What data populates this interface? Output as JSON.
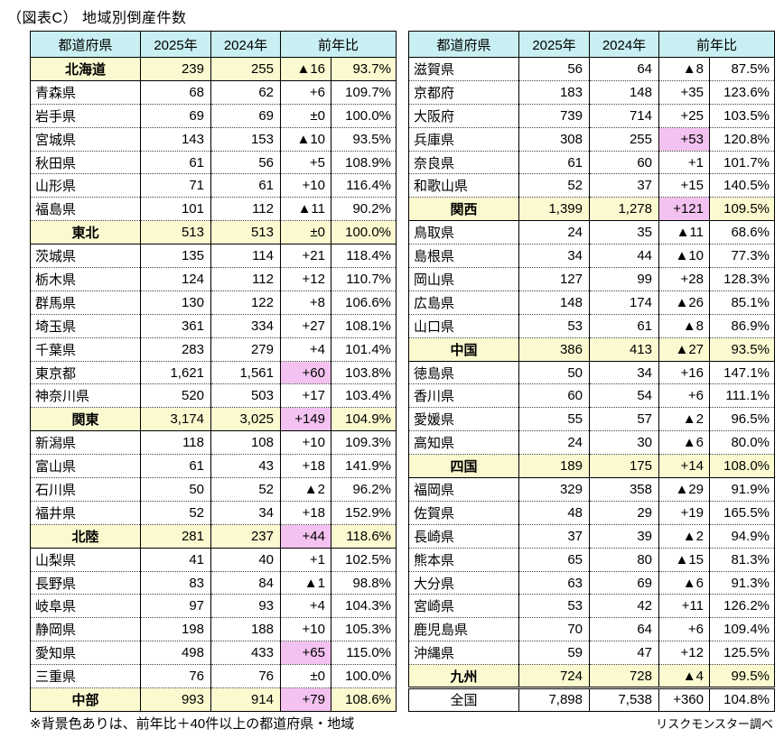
{
  "title": "（図表C） 地域別倒産件数",
  "footnote": "※背景色ありは、前年比＋40件以上の都道府県・地域",
  "credit": "リスクモンスター調べ",
  "columns": [
    "都道府県",
    "2025年",
    "2024年",
    "前年比"
  ],
  "colors": {
    "header_bg": "#C8EFF2",
    "region_bg": "#FBF9CF",
    "highlight_bg": "#F4C2F0"
  },
  "tables": [
    {
      "side": "left",
      "rows": [
        {
          "name": "北海道",
          "type": "region",
          "v2025": "239",
          "v2024": "255",
          "diff": "▲16",
          "ratio": "93.7%",
          "hl": false
        },
        {
          "name": "青森県",
          "type": "pref",
          "v2025": "68",
          "v2024": "62",
          "diff": "+6",
          "ratio": "109.7%",
          "hl": false
        },
        {
          "name": "岩手県",
          "type": "pref",
          "v2025": "69",
          "v2024": "69",
          "diff": "±0",
          "ratio": "100.0%",
          "hl": false
        },
        {
          "name": "宮城県",
          "type": "pref",
          "v2025": "143",
          "v2024": "153",
          "diff": "▲10",
          "ratio": "93.5%",
          "hl": false
        },
        {
          "name": "秋田県",
          "type": "pref",
          "v2025": "61",
          "v2024": "56",
          "diff": "+5",
          "ratio": "108.9%",
          "hl": false
        },
        {
          "name": "山形県",
          "type": "pref",
          "v2025": "71",
          "v2024": "61",
          "diff": "+10",
          "ratio": "116.4%",
          "hl": false
        },
        {
          "name": "福島県",
          "type": "pref",
          "v2025": "101",
          "v2024": "112",
          "diff": "▲11",
          "ratio": "90.2%",
          "hl": false
        },
        {
          "name": "東北",
          "type": "region",
          "v2025": "513",
          "v2024": "513",
          "diff": "±0",
          "ratio": "100.0%",
          "hl": false
        },
        {
          "name": "茨城県",
          "type": "pref",
          "v2025": "135",
          "v2024": "114",
          "diff": "+21",
          "ratio": "118.4%",
          "hl": false
        },
        {
          "name": "栃木県",
          "type": "pref",
          "v2025": "124",
          "v2024": "112",
          "diff": "+12",
          "ratio": "110.7%",
          "hl": false
        },
        {
          "name": "群馬県",
          "type": "pref",
          "v2025": "130",
          "v2024": "122",
          "diff": "+8",
          "ratio": "106.6%",
          "hl": false
        },
        {
          "name": "埼玉県",
          "type": "pref",
          "v2025": "361",
          "v2024": "334",
          "diff": "+27",
          "ratio": "108.1%",
          "hl": false
        },
        {
          "name": "千葉県",
          "type": "pref",
          "v2025": "283",
          "v2024": "279",
          "diff": "+4",
          "ratio": "101.4%",
          "hl": false
        },
        {
          "name": "東京都",
          "type": "pref",
          "v2025": "1,621",
          "v2024": "1,561",
          "diff": "+60",
          "ratio": "103.8%",
          "hl": true
        },
        {
          "name": "神奈川県",
          "type": "pref",
          "v2025": "520",
          "v2024": "503",
          "diff": "+17",
          "ratio": "103.4%",
          "hl": false
        },
        {
          "name": "関東",
          "type": "region",
          "v2025": "3,174",
          "v2024": "3,025",
          "diff": "+149",
          "ratio": "104.9%",
          "hl": true
        },
        {
          "name": "新潟県",
          "type": "pref",
          "v2025": "118",
          "v2024": "108",
          "diff": "+10",
          "ratio": "109.3%",
          "hl": false
        },
        {
          "name": "富山県",
          "type": "pref",
          "v2025": "61",
          "v2024": "43",
          "diff": "+18",
          "ratio": "141.9%",
          "hl": false
        },
        {
          "name": "石川県",
          "type": "pref",
          "v2025": "50",
          "v2024": "52",
          "diff": "▲2",
          "ratio": "96.2%",
          "hl": false
        },
        {
          "name": "福井県",
          "type": "pref",
          "v2025": "52",
          "v2024": "34",
          "diff": "+18",
          "ratio": "152.9%",
          "hl": false
        },
        {
          "name": "北陸",
          "type": "region",
          "v2025": "281",
          "v2024": "237",
          "diff": "+44",
          "ratio": "118.6%",
          "hl": true
        },
        {
          "name": "山梨県",
          "type": "pref",
          "v2025": "41",
          "v2024": "40",
          "diff": "+1",
          "ratio": "102.5%",
          "hl": false
        },
        {
          "name": "長野県",
          "type": "pref",
          "v2025": "83",
          "v2024": "84",
          "diff": "▲1",
          "ratio": "98.8%",
          "hl": false
        },
        {
          "name": "岐阜県",
          "type": "pref",
          "v2025": "97",
          "v2024": "93",
          "diff": "+4",
          "ratio": "104.3%",
          "hl": false
        },
        {
          "name": "静岡県",
          "type": "pref",
          "v2025": "198",
          "v2024": "188",
          "diff": "+10",
          "ratio": "105.3%",
          "hl": false
        },
        {
          "name": "愛知県",
          "type": "pref",
          "v2025": "498",
          "v2024": "433",
          "diff": "+65",
          "ratio": "115.0%",
          "hl": true
        },
        {
          "name": "三重県",
          "type": "pref",
          "v2025": "76",
          "v2024": "76",
          "diff": "±0",
          "ratio": "100.0%",
          "hl": false
        },
        {
          "name": "中部",
          "type": "region",
          "v2025": "993",
          "v2024": "914",
          "diff": "+79",
          "ratio": "108.6%",
          "hl": true
        }
      ]
    },
    {
      "side": "right",
      "rows": [
        {
          "name": "滋賀県",
          "type": "pref",
          "v2025": "56",
          "v2024": "64",
          "diff": "▲8",
          "ratio": "87.5%",
          "hl": false
        },
        {
          "name": "京都府",
          "type": "pref",
          "v2025": "183",
          "v2024": "148",
          "diff": "+35",
          "ratio": "123.6%",
          "hl": false
        },
        {
          "name": "大阪府",
          "type": "pref",
          "v2025": "739",
          "v2024": "714",
          "diff": "+25",
          "ratio": "103.5%",
          "hl": false
        },
        {
          "name": "兵庫県",
          "type": "pref",
          "v2025": "308",
          "v2024": "255",
          "diff": "+53",
          "ratio": "120.8%",
          "hl": true
        },
        {
          "name": "奈良県",
          "type": "pref",
          "v2025": "61",
          "v2024": "60",
          "diff": "+1",
          "ratio": "101.7%",
          "hl": false
        },
        {
          "name": "和歌山県",
          "type": "pref",
          "v2025": "52",
          "v2024": "37",
          "diff": "+15",
          "ratio": "140.5%",
          "hl": false
        },
        {
          "name": "関西",
          "type": "region",
          "v2025": "1,399",
          "v2024": "1,278",
          "diff": "+121",
          "ratio": "109.5%",
          "hl": true
        },
        {
          "name": "鳥取県",
          "type": "pref",
          "v2025": "24",
          "v2024": "35",
          "diff": "▲11",
          "ratio": "68.6%",
          "hl": false
        },
        {
          "name": "島根県",
          "type": "pref",
          "v2025": "34",
          "v2024": "44",
          "diff": "▲10",
          "ratio": "77.3%",
          "hl": false
        },
        {
          "name": "岡山県",
          "type": "pref",
          "v2025": "127",
          "v2024": "99",
          "diff": "+28",
          "ratio": "128.3%",
          "hl": false
        },
        {
          "name": "広島県",
          "type": "pref",
          "v2025": "148",
          "v2024": "174",
          "diff": "▲26",
          "ratio": "85.1%",
          "hl": false
        },
        {
          "name": "山口県",
          "type": "pref",
          "v2025": "53",
          "v2024": "61",
          "diff": "▲8",
          "ratio": "86.9%",
          "hl": false
        },
        {
          "name": "中国",
          "type": "region",
          "v2025": "386",
          "v2024": "413",
          "diff": "▲27",
          "ratio": "93.5%",
          "hl": false
        },
        {
          "name": "徳島県",
          "type": "pref",
          "v2025": "50",
          "v2024": "34",
          "diff": "+16",
          "ratio": "147.1%",
          "hl": false
        },
        {
          "name": "香川県",
          "type": "pref",
          "v2025": "60",
          "v2024": "54",
          "diff": "+6",
          "ratio": "111.1%",
          "hl": false
        },
        {
          "name": "愛媛県",
          "type": "pref",
          "v2025": "55",
          "v2024": "57",
          "diff": "▲2",
          "ratio": "96.5%",
          "hl": false
        },
        {
          "name": "高知県",
          "type": "pref",
          "v2025": "24",
          "v2024": "30",
          "diff": "▲6",
          "ratio": "80.0%",
          "hl": false
        },
        {
          "name": "四国",
          "type": "region",
          "v2025": "189",
          "v2024": "175",
          "diff": "+14",
          "ratio": "108.0%",
          "hl": false
        },
        {
          "name": "福岡県",
          "type": "pref",
          "v2025": "329",
          "v2024": "358",
          "diff": "▲29",
          "ratio": "91.9%",
          "hl": false
        },
        {
          "name": "佐賀県",
          "type": "pref",
          "v2025": "48",
          "v2024": "29",
          "diff": "+19",
          "ratio": "165.5%",
          "hl": false
        },
        {
          "name": "長崎県",
          "type": "pref",
          "v2025": "37",
          "v2024": "39",
          "diff": "▲2",
          "ratio": "94.9%",
          "hl": false
        },
        {
          "name": "熊本県",
          "type": "pref",
          "v2025": "65",
          "v2024": "80",
          "diff": "▲15",
          "ratio": "81.3%",
          "hl": false
        },
        {
          "name": "大分県",
          "type": "pref",
          "v2025": "63",
          "v2024": "69",
          "diff": "▲6",
          "ratio": "91.3%",
          "hl": false
        },
        {
          "name": "宮崎県",
          "type": "pref",
          "v2025": "53",
          "v2024": "42",
          "diff": "+11",
          "ratio": "126.2%",
          "hl": false
        },
        {
          "name": "鹿児島県",
          "type": "pref",
          "v2025": "70",
          "v2024": "64",
          "diff": "+6",
          "ratio": "109.4%",
          "hl": false
        },
        {
          "name": "沖縄県",
          "type": "pref",
          "v2025": "59",
          "v2024": "47",
          "diff": "+12",
          "ratio": "125.5%",
          "hl": false
        },
        {
          "name": "九州",
          "type": "region",
          "v2025": "724",
          "v2024": "728",
          "diff": "▲4",
          "ratio": "99.5%",
          "hl": false,
          "double": true
        },
        {
          "name": "全国",
          "type": "total",
          "v2025": "7,898",
          "v2024": "7,538",
          "diff": "+360",
          "ratio": "104.8%",
          "hl": false
        }
      ]
    }
  ]
}
